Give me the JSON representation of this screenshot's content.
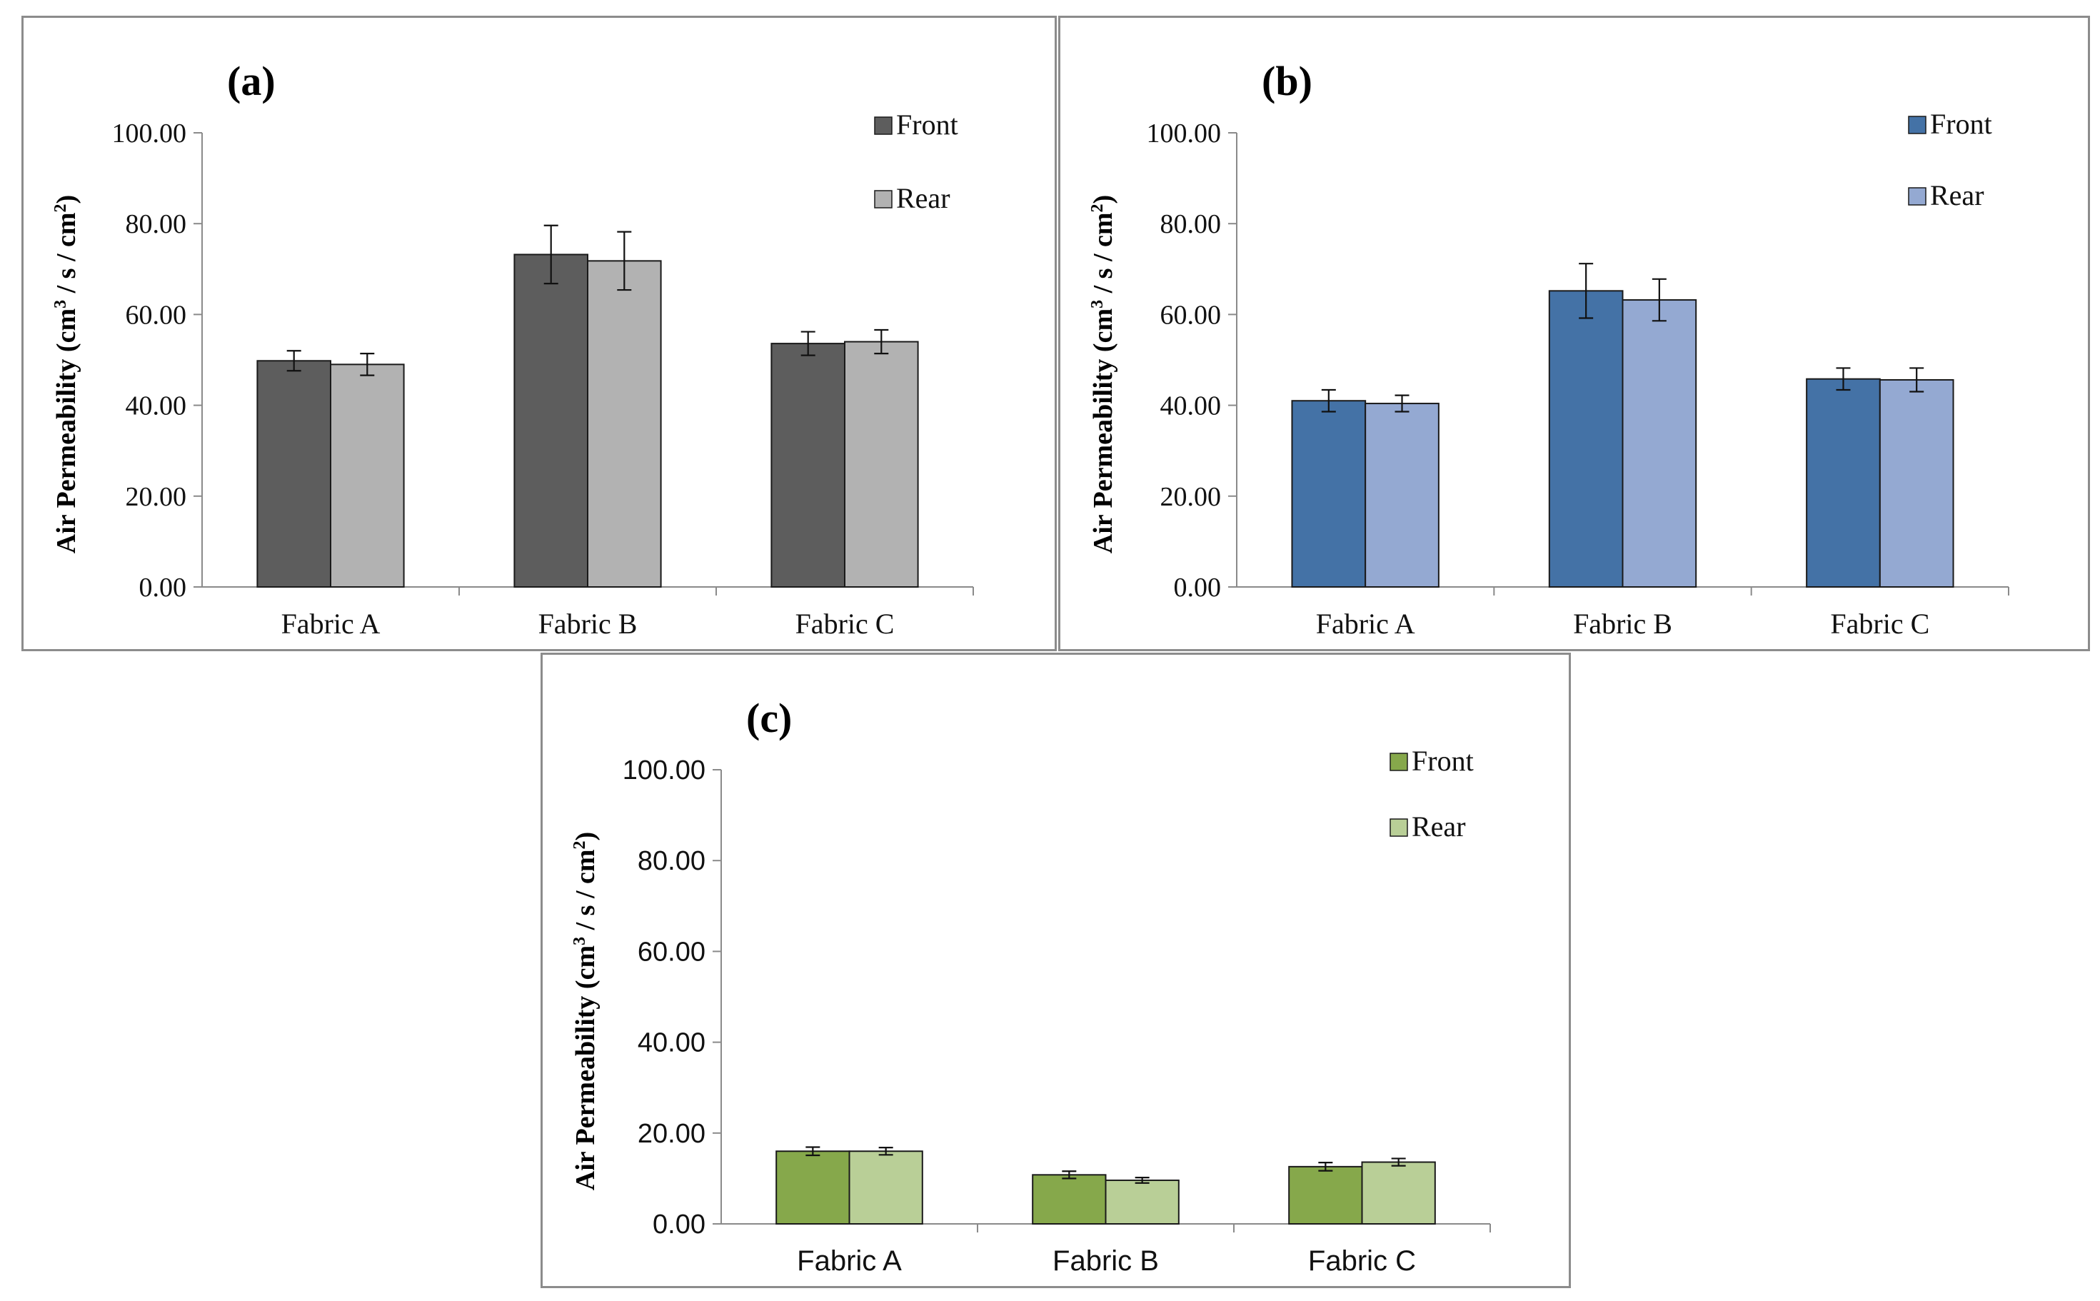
{
  "chart_data": [
    {
      "type": "bar",
      "title": "(a)",
      "xlabel": "",
      "ylabel": "Air Permeability (cm³ / s / cm²)",
      "ylim": [
        0,
        100
      ],
      "yticks": [
        "0.00",
        "20.00",
        "40.00",
        "60.00",
        "80.00",
        "100.00"
      ],
      "categories": [
        "Fabric A",
        "Fabric B",
        "Fabric C"
      ],
      "legend_position": "top-right",
      "series": [
        {
          "name": "Front",
          "color": "#5d5d5d",
          "values": [
            49.8,
            73.2,
            53.6
          ],
          "errors": [
            2.2,
            6.4,
            2.6
          ]
        },
        {
          "name": "Rear",
          "color": "#b2b2b2",
          "values": [
            49.0,
            71.8,
            54.0
          ],
          "errors": [
            2.4,
            6.4,
            2.6
          ]
        }
      ]
    },
    {
      "type": "bar",
      "title": "(b)",
      "xlabel": "",
      "ylabel": "Air Permeability (cm³ / s / cm²)",
      "ylim": [
        0,
        100
      ],
      "yticks": [
        "0.00",
        "20.00",
        "40.00",
        "60.00",
        "80.00",
        "100.00"
      ],
      "categories": [
        "Fabric A",
        "Fabric B",
        "Fabric C"
      ],
      "legend_position": "top-right",
      "series": [
        {
          "name": "Front",
          "color": "#4472a6",
          "values": [
            41.0,
            65.2,
            45.8
          ],
          "errors": [
            2.4,
            6.0,
            2.4
          ]
        },
        {
          "name": "Rear",
          "color": "#94a9d2",
          "values": [
            40.4,
            63.2,
            45.6
          ],
          "errors": [
            1.8,
            4.6,
            2.6
          ]
        }
      ]
    },
    {
      "type": "bar",
      "title": "(c)",
      "xlabel": "",
      "ylabel": "Air Permeability (cm³ / s / cm²)",
      "ylim": [
        0,
        100
      ],
      "yticks": [
        "0.00",
        "20.00",
        "40.00",
        "60.00",
        "80.00",
        "100.00"
      ],
      "categories": [
        "Fabric A",
        "Fabric B",
        "Fabric C"
      ],
      "legend_position": "top-right",
      "series": [
        {
          "name": "Front",
          "color": "#86a84b",
          "values": [
            16.0,
            10.8,
            12.6
          ],
          "errors": [
            0.9,
            0.8,
            0.9
          ]
        },
        {
          "name": "Rear",
          "color": "#b9cf97",
          "values": [
            16.0,
            9.6,
            13.6
          ],
          "errors": [
            0.8,
            0.6,
            0.8
          ]
        }
      ]
    }
  ]
}
